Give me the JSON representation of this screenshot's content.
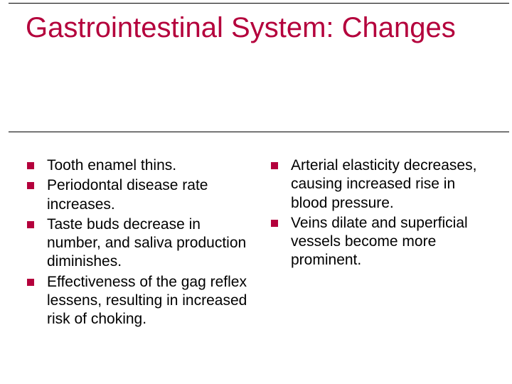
{
  "slide": {
    "title": "Gastrointestinal System: Changes",
    "title_color": "#b4003c",
    "title_fontsize": 40,
    "background_color": "#ffffff",
    "border_color": "#000000",
    "bullet_color": "#b4003c",
    "body_fontsize": 21,
    "body_color": "#000000",
    "columns": [
      {
        "items": [
          "Tooth enamel thins.",
          "Periodontal disease rate increases.",
          "Taste buds decrease in number, and saliva production diminishes.",
          "Effectiveness of the gag reflex lessens, resulting in increased risk of choking."
        ]
      },
      {
        "items": [
          "Arterial elasticity decreases, causing increased rise in blood pressure.",
          "Veins dilate and superficial vessels become more prominent."
        ]
      }
    ]
  }
}
